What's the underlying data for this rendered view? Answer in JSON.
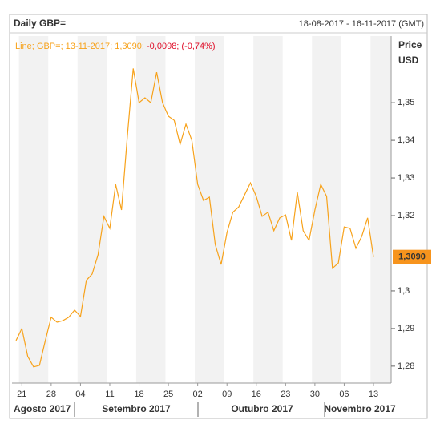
{
  "chart_data": {
    "type": "line",
    "title": "Daily GBP=",
    "date_range": "18-08-2017 - 16-11-2017 (GMT)",
    "legend_text": "Line; GBP=; 13-11-2017; 1,3090; ",
    "change_text": "-0,0098; (-0,74%)",
    "y_axis_label": "Price",
    "y_axis_unit": "USD",
    "last_label": {
      "value": 1.309,
      "label": "1,3090"
    },
    "x_groups": [
      "Agosto 2017",
      "Setembro 2017",
      "Outubro 2017",
      "Novembro 2017"
    ],
    "categories": [
      null,
      "21",
      null,
      null,
      null,
      null,
      "28",
      null,
      null,
      null,
      null,
      "04",
      null,
      null,
      null,
      null,
      "11",
      null,
      null,
      null,
      null,
      "18",
      null,
      null,
      null,
      null,
      "25",
      null,
      null,
      null,
      null,
      "02",
      null,
      null,
      null,
      null,
      "09",
      null,
      null,
      null,
      null,
      "16",
      null,
      null,
      null,
      null,
      "23",
      null,
      null,
      null,
      null,
      "30",
      null,
      null,
      null,
      null,
      "06",
      null,
      null,
      null,
      null,
      "13"
    ],
    "series": [
      {
        "name": "GBP=",
        "color": "#f7a21b",
        "values": [
          1.2868,
          1.29,
          1.2826,
          1.2798,
          1.2802,
          1.2868,
          1.293,
          1.2917,
          1.2921,
          1.293,
          1.2949,
          1.2932,
          1.3028,
          1.3045,
          1.3096,
          1.3198,
          1.3166,
          1.3283,
          1.3215,
          1.3411,
          1.3591,
          1.35,
          1.3513,
          1.35,
          1.3581,
          1.35,
          1.3464,
          1.3453,
          1.3389,
          1.3443,
          1.34,
          1.3283,
          1.324,
          1.3249,
          1.3123,
          1.307,
          1.3155,
          1.3209,
          1.3223,
          1.3255,
          1.3287,
          1.3251,
          1.3198,
          1.3209,
          1.316,
          1.3194,
          1.3202,
          1.3134,
          1.3262,
          1.316,
          1.3134,
          1.3215,
          1.3283,
          1.3251,
          1.306,
          1.3074,
          1.317,
          1.3166,
          1.3113,
          1.3145,
          1.3194,
          1.309
        ]
      }
    ],
    "ylim": [
      1.2755,
      1.3677
    ],
    "yticks": [
      {
        "value": 1.35,
        "label": "1,35"
      },
      {
        "value": 1.34,
        "label": "1,34"
      },
      {
        "value": 1.33,
        "label": "1,33"
      },
      {
        "value": 1.32,
        "label": "1,32"
      },
      {
        "value": 1.3,
        "label": "1,3"
      },
      {
        "value": 1.29,
        "label": "1,29"
      },
      {
        "value": 1.28,
        "label": "1,28"
      }
    ]
  }
}
